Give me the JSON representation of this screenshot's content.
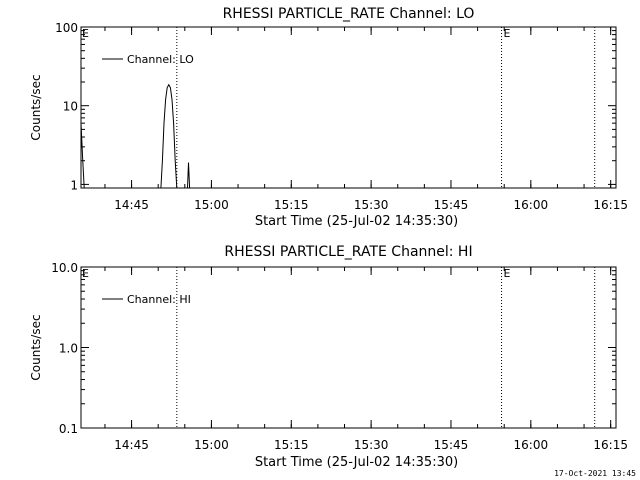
{
  "footer_timestamp": "17-Oct-2021 13:45",
  "chart_data": [
    {
      "type": "line",
      "title": "RHESSI PARTICLE_RATE Channel: LO",
      "xlabel": "Start Time (25-Jul-02 14:35:30)",
      "ylabel": "Counts/sec",
      "yscale": "log",
      "ylim": [
        0.9,
        100
      ],
      "xlim_minutes_after_1435_30": [
        0,
        100
      ],
      "x_ticks": [
        "14:45",
        "15:00",
        "15:15",
        "15:30",
        "15:45",
        "16:00",
        "16:15"
      ],
      "y_ticks": [
        "1",
        "10",
        "100"
      ],
      "legend": "Channel: LO",
      "legend_position": "top-left",
      "event_markers": [
        {
          "time": "14:53:30",
          "label": ""
        },
        {
          "time": "15:54:30",
          "label": "E"
        },
        {
          "time": "16:12:00",
          "label": ""
        }
      ],
      "start_marker_label": "E",
      "series": [
        {
          "name": "Channel: LO",
          "points": [
            [
              "14:35:30",
              6
            ],
            [
              "14:35:48",
              2.2
            ],
            [
              "14:36:06",
              0.9
            ],
            [
              "14:50:30",
              0.9
            ],
            [
              "14:50:48",
              2
            ],
            [
              "14:51:06",
              6
            ],
            [
              "14:51:24",
              12
            ],
            [
              "14:51:42",
              17
            ],
            [
              "14:52:00",
              18.5
            ],
            [
              "14:52:18",
              17
            ],
            [
              "14:52:36",
              12
            ],
            [
              "14:52:54",
              6
            ],
            [
              "14:53:12",
              2
            ],
            [
              "14:53:30",
              0.9
            ],
            [
              "14:55:30",
              0.9
            ],
            [
              "14:55:42",
              1.9
            ],
            [
              "14:55:54",
              0.9
            ]
          ]
        }
      ]
    },
    {
      "type": "line",
      "title": "RHESSI PARTICLE_RATE Channel: HI",
      "xlabel": "Start Time (25-Jul-02 14:35:30)",
      "ylabel": "Counts/sec",
      "yscale": "log",
      "ylim": [
        0.1,
        10
      ],
      "x_ticks": [
        "14:45",
        "15:00",
        "15:15",
        "15:30",
        "15:45",
        "16:00",
        "16:15"
      ],
      "y_ticks": [
        "0.1",
        "1.0",
        "10.0"
      ],
      "legend": "Channel: HI",
      "legend_position": "top-left",
      "event_markers": [
        {
          "time": "14:53:30",
          "label": ""
        },
        {
          "time": "15:54:30",
          "label": "E"
        },
        {
          "time": "16:12:00",
          "label": ""
        }
      ],
      "start_marker_label": "E",
      "series": [
        {
          "name": "Channel: HI",
          "points": []
        }
      ]
    }
  ]
}
